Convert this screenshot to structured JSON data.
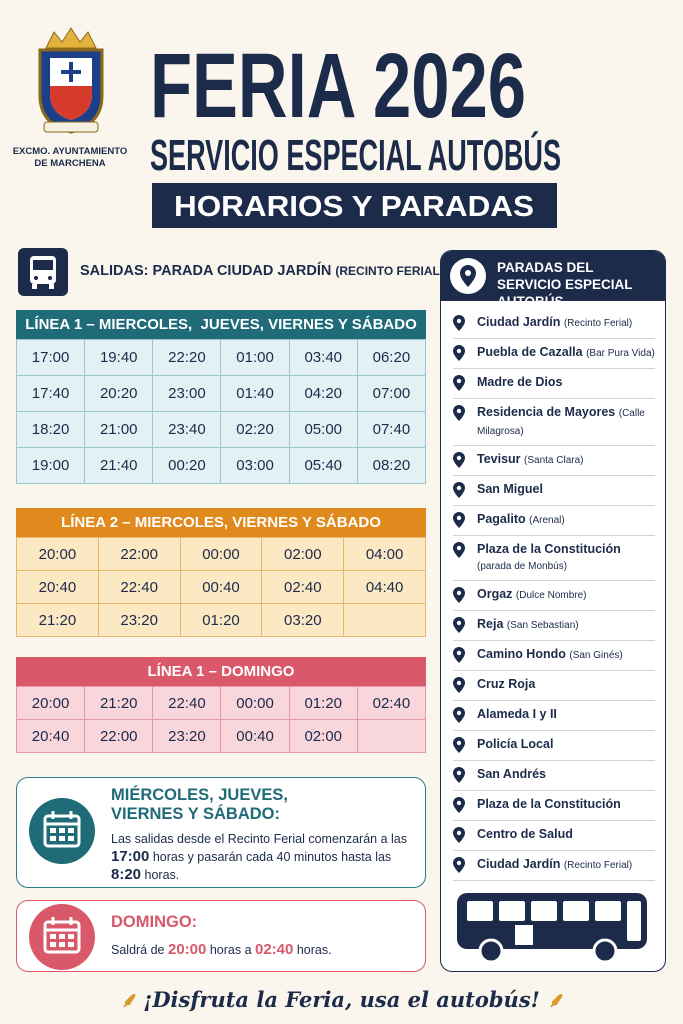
{
  "header": {
    "org": [
      "EXCMO. AYUNTAMIENTO",
      "DE MARCHENA"
    ],
    "title": "FERIA 2026",
    "subtitle": "SERVICIO ESPECIAL AUTOBÚS",
    "banner": "HORARIOS Y PARADAS"
  },
  "departures": {
    "label": "SALIDAS: PARADA CIUDAD JARDÍN",
    "note": "(RECINTO FERIAL)"
  },
  "schedules": [
    {
      "title": "LÍNEA 1 – MIERCOLES,  JUEVES, VIERNES Y SÁBADO",
      "rows": [
        [
          "17:00",
          "19:40",
          "22:20",
          "01:00",
          "03:40",
          "06:20"
        ],
        [
          "17:40",
          "20:20",
          "23:00",
          "01:40",
          "04:20",
          "07:00"
        ],
        [
          "18:20",
          "21:00",
          "23:40",
          "02:20",
          "05:00",
          "07:40"
        ],
        [
          "19:00",
          "21:40",
          "00:20",
          "03:00",
          "05:40",
          "08:20"
        ]
      ]
    },
    {
      "title": "LÍNEA 2 – MIERCOLES, VIERNES Y SÁBADO",
      "rows": [
        [
          "20:00",
          "22:00",
          "00:00",
          "02:00",
          "04:00"
        ],
        [
          "20:40",
          "22:40",
          "00:40",
          "02:40",
          "04:40"
        ],
        [
          "21:20",
          "23:20",
          "01:20",
          "03:20"
        ]
      ]
    },
    {
      "title": "LÍNEA 1 – DOMINGO",
      "rows": [
        [
          "20:00",
          "21:20",
          "22:40",
          "00:00",
          "01:20",
          "02:40"
        ],
        [
          "20:40",
          "22:00",
          "23:20",
          "00:40",
          "02:00"
        ]
      ]
    }
  ],
  "info": [
    {
      "title": "MIÉRCOLES, JUEVES, VIERNES Y SÁBADO:",
      "parts": [
        "Las salidas desde el Recinto Ferial comenzarán a las ",
        "17:00",
        " horas y pasarán cada 40 minutos hasta las ",
        "8:20",
        " horas."
      ]
    },
    {
      "title": "DOMINGO:",
      "parts": [
        "Saldrá de ",
        "20:00",
        " horas a ",
        "02:40",
        " horas."
      ]
    }
  ],
  "stops": {
    "title": "PARADAS DEL SERVICIO ESPECIAL AUTOBÚS",
    "items": [
      {
        "name": "Ciudad Jardín",
        "detail": "(Recinto Ferial)"
      },
      {
        "name": "Puebla de Cazalla",
        "detail": "(Bar Pura Vida)"
      },
      {
        "name": "Madre de Dios"
      },
      {
        "name": "Residencia de Mayores",
        "detail": "(Calle Milagrosa)"
      },
      {
        "name": "Tevisur",
        "detail": "(Santa Clara)"
      },
      {
        "name": "San Miguel"
      },
      {
        "name": "Pagalito",
        "detail": "(Arenal)"
      },
      {
        "name": "Plaza de la Constitución",
        "detail": "(parada de Monbús)"
      },
      {
        "name": "Orgaz",
        "detail": "(Dulce Nombre)"
      },
      {
        "name": "Reja",
        "detail": "(San Sebastian)"
      },
      {
        "name": "Camino Hondo",
        "detail": "(San Ginés)"
      },
      {
        "name": "Cruz Roja"
      },
      {
        "name": "Alameda I y II"
      },
      {
        "name": "Policía Local"
      },
      {
        "name": "San Andrés"
      },
      {
        "name": "Plaza de la Constitución"
      },
      {
        "name": "Centro de Salud"
      },
      {
        "name": "Ciudad Jardín",
        "detail": "(Recinto Ferial)"
      }
    ]
  },
  "footer": "¡Disfruta la Feria, usa el autobús!"
}
